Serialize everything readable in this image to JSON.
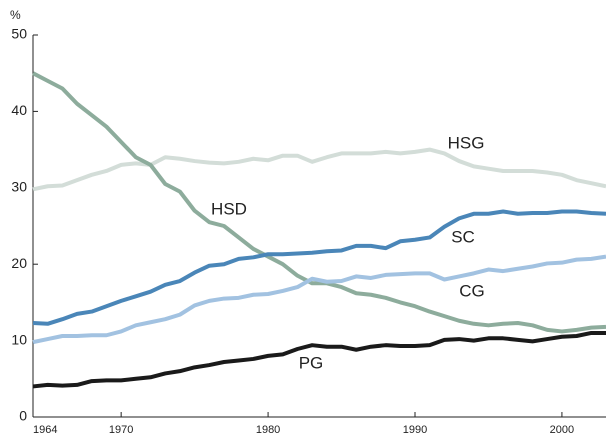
{
  "chart_data": {
    "type": "line",
    "y_label": "%",
    "x": [
      1964,
      1965,
      1966,
      1967,
      1968,
      1969,
      1970,
      1971,
      1972,
      1973,
      1974,
      1975,
      1976,
      1977,
      1978,
      1979,
      1980,
      1981,
      1982,
      1983,
      1984,
      1985,
      1986,
      1987,
      1988,
      1989,
      1990,
      1991,
      1992,
      1993,
      1994,
      1995,
      1996,
      1997,
      1998,
      1999,
      2000,
      2001,
      2002,
      2003
    ],
    "xlim": [
      1964,
      2003
    ],
    "xticks": [
      1964,
      1970,
      1980,
      1990,
      2000
    ],
    "ylim": [
      0,
      50
    ],
    "yticks": [
      0,
      10,
      20,
      30,
      40,
      50
    ],
    "grid": false,
    "series": [
      {
        "name": "HSG",
        "color": "#d3ddd8",
        "values": [
          29.8,
          30.2,
          30.3,
          31,
          31.7,
          32.2,
          33,
          33.2,
          33,
          34,
          33.8,
          33.5,
          33.3,
          33.2,
          33.4,
          33.8,
          33.6,
          34.2,
          34.2,
          33.4,
          34,
          34.5,
          34.5,
          34.5,
          34.7,
          34.5,
          34.7,
          35,
          34.5,
          33.5,
          32.8,
          32.5,
          32.2,
          32.2,
          32.2,
          32,
          31.7,
          31,
          30.6,
          30.2
        ]
      },
      {
        "name": "HSD",
        "color": "#8dac9c",
        "values": [
          45,
          44,
          43,
          41,
          39.5,
          38,
          36,
          34,
          33,
          30.5,
          29.5,
          27,
          25.5,
          25,
          23.5,
          22,
          21,
          20,
          18.5,
          17.5,
          17.5,
          17,
          16.2,
          16,
          15.6,
          15,
          14.5,
          13.8,
          13.2,
          12.6,
          12.2,
          12,
          12.2,
          12.3,
          12,
          11.4,
          11.2,
          11.4,
          11.7,
          11.8
        ]
      },
      {
        "name": "SC",
        "color": "#4a86b8",
        "values": [
          12.3,
          12.2,
          12.8,
          13.5,
          13.8,
          14.5,
          15.2,
          15.8,
          16.4,
          17.3,
          17.8,
          18.9,
          19.8,
          20,
          20.7,
          20.9,
          21.3,
          21.3,
          21.4,
          21.5,
          21.7,
          21.8,
          22.4,
          22.4,
          22.1,
          23,
          23.2,
          23.5,
          24.9,
          26,
          26.6,
          26.6,
          26.9,
          26.6,
          26.7,
          26.7,
          26.9,
          26.9,
          26.7,
          26.6
        ]
      },
      {
        "name": "CG",
        "color": "#a2c2e1",
        "values": [
          9.8,
          10.2,
          10.6,
          10.6,
          10.7,
          10.7,
          11.2,
          12,
          12.4,
          12.8,
          13.4,
          14.6,
          15.2,
          15.5,
          15.6,
          16,
          16.1,
          16.5,
          17,
          18.1,
          17.7,
          17.8,
          18.4,
          18.2,
          18.6,
          18.7,
          18.8,
          18.8,
          18,
          18.4,
          18.8,
          19.3,
          19.1,
          19.4,
          19.7,
          20.1,
          20.2,
          20.6,
          20.7,
          21
        ]
      },
      {
        "name": "PG",
        "color": "#1a1a1a",
        "values": [
          4,
          4.2,
          4.1,
          4.2,
          4.7,
          4.8,
          4.8,
          5,
          5.2,
          5.7,
          6,
          6.5,
          6.8,
          7.2,
          7.4,
          7.6,
          8,
          8.2,
          8.9,
          9.4,
          9.2,
          9.2,
          8.8,
          9.2,
          9.4,
          9.3,
          9.3,
          9.4,
          10.1,
          10.2,
          10,
          10.3,
          10.3,
          10.1,
          9.9,
          10.2,
          10.5,
          10.6,
          11,
          11
        ]
      }
    ]
  }
}
